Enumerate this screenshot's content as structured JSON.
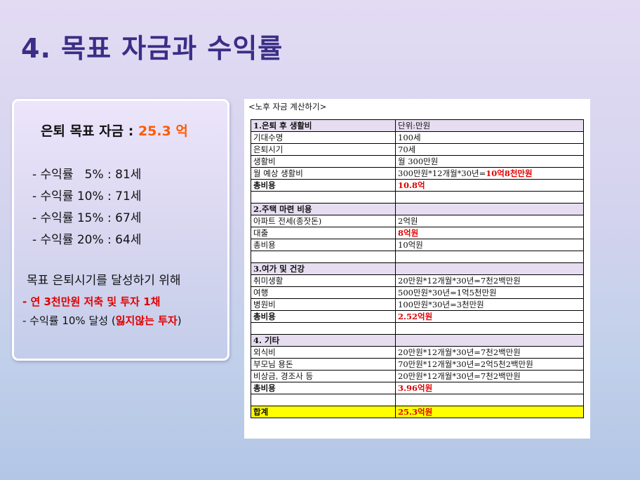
{
  "title": "4. 목표 자금과 수익률",
  "summary": {
    "goal_label": "은퇴 목표 자금 : ",
    "goal_value": "25.3 억",
    "rates": [
      "- 수익률   5% : 81세",
      "- 수익률 10% : 71세",
      "- 수익률 15% : 67세",
      "- 수익률 20% : 64세"
    ],
    "achieve_title": "목표 은퇴시기를 달성하기 위해",
    "plan1": "- 연 3천만원 저축 및 투자 1채",
    "plan2_prefix": "- 수익률 10% 달성 (",
    "plan2_emph": "잃지않는 투자",
    "plan2_suffix": ")"
  },
  "calc": {
    "caption": "<노후 자금 계산하기>",
    "rows": [
      {
        "kind": "head",
        "label": "1.은퇴 후 생활비",
        "value": "단위:만원"
      },
      {
        "kind": "item",
        "label": "기대수명",
        "value": "100세"
      },
      {
        "kind": "item",
        "label": "은퇴시기",
        "value": "70세"
      },
      {
        "kind": "item",
        "label": "생활비",
        "value": "월 300만원"
      },
      {
        "kind": "item",
        "label": "월 예상 생활비",
        "value": "300만원*12개월*30년=",
        "value_red": "10억8천만원"
      },
      {
        "kind": "total",
        "label": "총비용",
        "value": "10.8억",
        "red": true
      },
      {
        "kind": "blank",
        "label": "",
        "value": ""
      },
      {
        "kind": "head",
        "label": "2.주택 마련 비용",
        "value": ""
      },
      {
        "kind": "item",
        "label": "아파트 전세(종잣돈)",
        "value": "2억원"
      },
      {
        "kind": "item",
        "label": "대출",
        "value": "8억원",
        "red": true
      },
      {
        "kind": "item",
        "label": "총비용",
        "value": "10억원"
      },
      {
        "kind": "blank",
        "label": "",
        "value": ""
      },
      {
        "kind": "head",
        "label": "3.여가 및 건강",
        "value": ""
      },
      {
        "kind": "item",
        "label": "취미생활",
        "value": "20만원*12개월*30년=7천2백만원"
      },
      {
        "kind": "item",
        "label": "여행",
        "value": "500만원*30년=1억5천만원"
      },
      {
        "kind": "item",
        "label": "병원비",
        "value": "100만원*30년=3천만원"
      },
      {
        "kind": "total",
        "label": "총비용",
        "value": "2.52억원",
        "red": true
      },
      {
        "kind": "blank",
        "label": "",
        "value": ""
      },
      {
        "kind": "head",
        "label": "4. 기타",
        "value": ""
      },
      {
        "kind": "item",
        "label": "외식비",
        "value": "20만원*12개월*30년=7천2백만원"
      },
      {
        "kind": "item",
        "label": "부모님 용돈",
        "value": "70만원*12개월*30년=2억5천2백만원"
      },
      {
        "kind": "item",
        "label": "비상금, 경조사 등",
        "value": "20만원*12개월*30년=7천2백만원"
      },
      {
        "kind": "total",
        "label": "총비용",
        "value": "3.96억원",
        "red": true
      },
      {
        "kind": "blank",
        "label": "",
        "value": ""
      },
      {
        "kind": "grand",
        "label": "합계",
        "value": "25.3억원",
        "red": true
      }
    ]
  }
}
